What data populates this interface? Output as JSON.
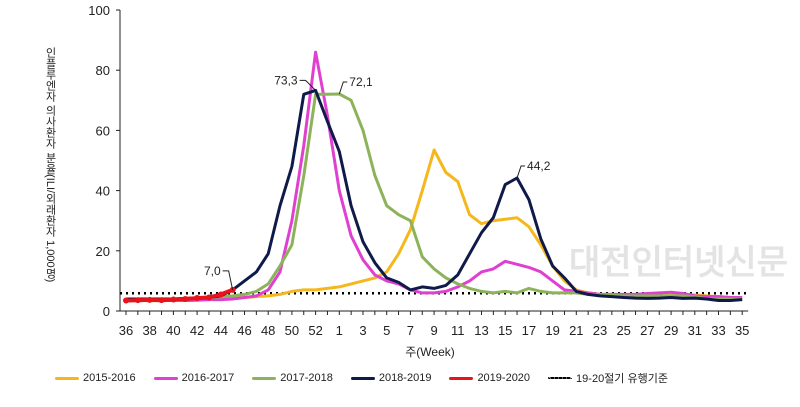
{
  "chart_data": {
    "type": "line",
    "ylabel": "인플루엔자 의사환자 분율(ILI/외래환자 1,000명)",
    "xlabel": "주(Week)",
    "ylim": [
      0,
      100
    ],
    "yticks": [
      "0",
      "20",
      "40",
      "60",
      "80",
      "100"
    ],
    "weeks": [
      "36",
      "37",
      "38",
      "39",
      "40",
      "41",
      "42",
      "43",
      "44",
      "45",
      "46",
      "47",
      "48",
      "49",
      "50",
      "51",
      "52",
      "53",
      "1",
      "2",
      "3",
      "4",
      "5",
      "6",
      "7",
      "8",
      "9",
      "10",
      "11",
      "12",
      "13",
      "14",
      "15",
      "16",
      "17",
      "18",
      "19",
      "20",
      "21",
      "22",
      "23",
      "24",
      "25",
      "26",
      "27",
      "28",
      "29",
      "30",
      "31",
      "32",
      "33",
      "34",
      "35"
    ],
    "xticklabels": [
      "36",
      "38",
      "40",
      "42",
      "44",
      "46",
      "48",
      "50",
      "52",
      "1",
      "3",
      "5",
      "7",
      "9",
      "11",
      "13",
      "15",
      "17",
      "19",
      "21",
      "23",
      "25",
      "27",
      "29",
      "31",
      "33",
      "35"
    ],
    "series": [
      {
        "name": "2015-2016",
        "color": "#f5b81c",
        "values": [
          3.5,
          3.6,
          3.4,
          3.5,
          3.6,
          3.5,
          3.7,
          3.8,
          4,
          4.2,
          4.5,
          4.8,
          5,
          5.5,
          6.5,
          7,
          7,
          7.5,
          8,
          9,
          10,
          11,
          13,
          19,
          27,
          40,
          53.5,
          46,
          43,
          32,
          29,
          30,
          30.5,
          31,
          28,
          22,
          15,
          10,
          7,
          6,
          5.5,
          5.5,
          5.3,
          5,
          5,
          5,
          5.2,
          5.5,
          5.3,
          5,
          4.8,
          4.5,
          4.5
        ]
      },
      {
        "name": "2016-2017",
        "color": "#e040d0",
        "values": [
          3.5,
          3.6,
          3.6,
          3.5,
          3.6,
          3.5,
          3.6,
          3.8,
          3.8,
          4,
          4.5,
          5,
          7,
          13,
          30,
          55,
          86,
          65,
          40,
          25,
          17,
          12,
          10,
          9,
          7,
          6,
          6,
          6.5,
          8,
          10,
          13,
          14,
          16.5,
          15.5,
          14.5,
          13,
          10,
          7,
          6.5,
          6,
          5.5,
          5.5,
          5.5,
          5.5,
          5.8,
          6,
          6.2,
          5.8,
          5,
          4.8,
          4.8,
          4.5,
          4.5
        ]
      },
      {
        "name": "2017-2018",
        "color": "#8db35a",
        "values": [
          4,
          4,
          4,
          4,
          4,
          4.2,
          4.3,
          4.5,
          4.7,
          5,
          5.5,
          6.5,
          9,
          15,
          22,
          45,
          72,
          72,
          72.1,
          70,
          60,
          45,
          35,
          32,
          30,
          18,
          14,
          11,
          9,
          7.5,
          6.5,
          6,
          6.5,
          6,
          7.5,
          6.5,
          6,
          6,
          6,
          5.5,
          5.5,
          5.3,
          5,
          5,
          5,
          5,
          5,
          5,
          4.8,
          4,
          4,
          4,
          4
        ]
      },
      {
        "name": "2018-2019",
        "color": "#0f1a4a",
        "values": [
          4,
          4,
          4,
          4,
          4,
          4.2,
          4.3,
          4.5,
          5,
          7,
          10,
          13,
          19,
          35,
          48,
          72,
          73.3,
          63,
          53,
          35,
          23,
          16,
          11,
          9.5,
          7,
          8,
          7.5,
          8.5,
          12,
          19,
          26,
          31,
          42,
          44.2,
          37,
          24,
          15,
          11,
          6.5,
          5.5,
          5,
          4.8,
          4.5,
          4.3,
          4.2,
          4.3,
          4.5,
          4.2,
          4.3,
          4,
          3.5,
          3.5,
          3.8
        ]
      },
      {
        "name": "2019-2020",
        "color": "#e8141c",
        "values": [
          3.5,
          3.6,
          3.7,
          3.6,
          3.8,
          4,
          4.3,
          4.5,
          5.5,
          7.0
        ]
      }
    ],
    "threshold": {
      "name": "19-20절기 유행기준",
      "value": 5.9,
      "color": "#000000"
    },
    "annotations": [
      {
        "series": "2018-2019",
        "week": "52",
        "text": "73,3"
      },
      {
        "series": "2017-2018",
        "week": "1",
        "text": "72,1"
      },
      {
        "series": "2018-2019",
        "week": "16",
        "text": "44,2"
      },
      {
        "series": "2019-2020",
        "week": "45",
        "text": "7,0"
      }
    ],
    "legend_position": "bottom"
  },
  "watermark": "대전인터넷신문"
}
